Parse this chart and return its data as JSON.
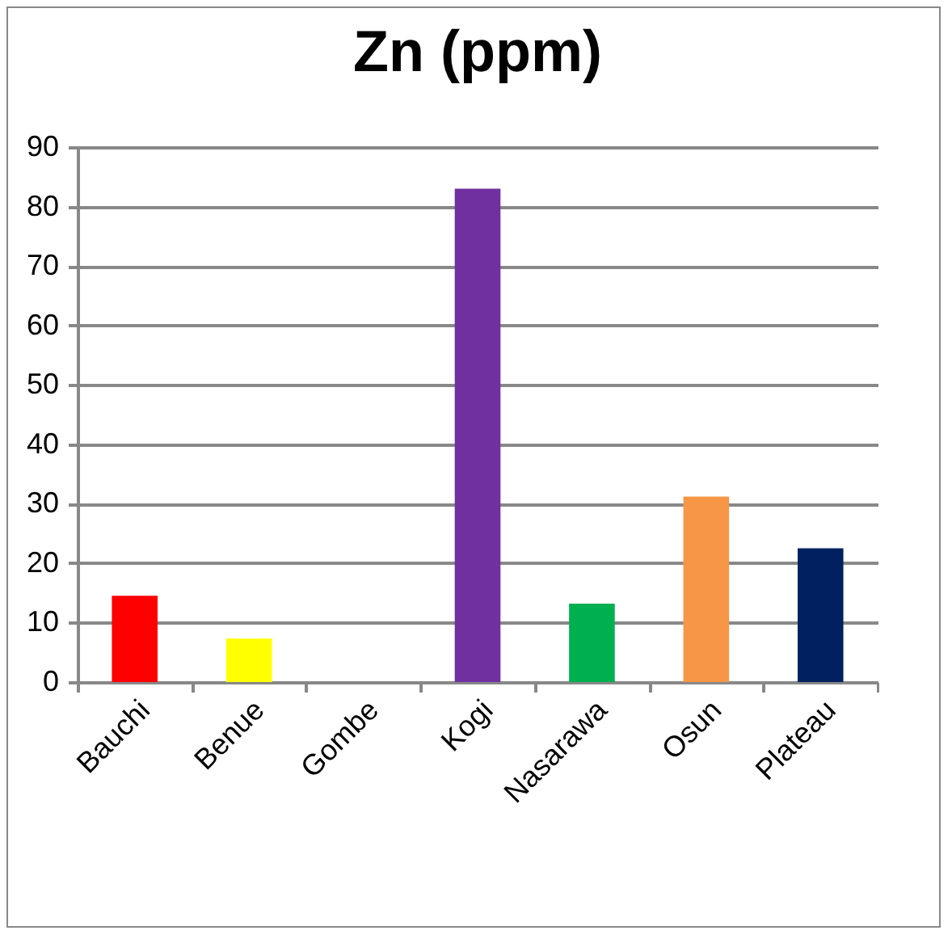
{
  "chart_data": {
    "type": "bar",
    "title": "Zn (ppm)",
    "categories": [
      "Bauchi",
      "Benue",
      "Gombe",
      "Kogi",
      "Nasarawa",
      "Osun",
      "Plateau"
    ],
    "values": [
      14.5,
      7.3,
      0,
      83.0,
      13.2,
      31.2,
      22.5
    ],
    "colors": [
      "#ff0000",
      "#ffff00",
      "#4f81bd",
      "#7030a0",
      "#00b050",
      "#f79646",
      "#002060"
    ],
    "ylim": [
      0,
      90
    ],
    "yticks": [
      0,
      10,
      20,
      30,
      40,
      50,
      60,
      70,
      80,
      90
    ],
    "grid": "y",
    "legend": false
  }
}
